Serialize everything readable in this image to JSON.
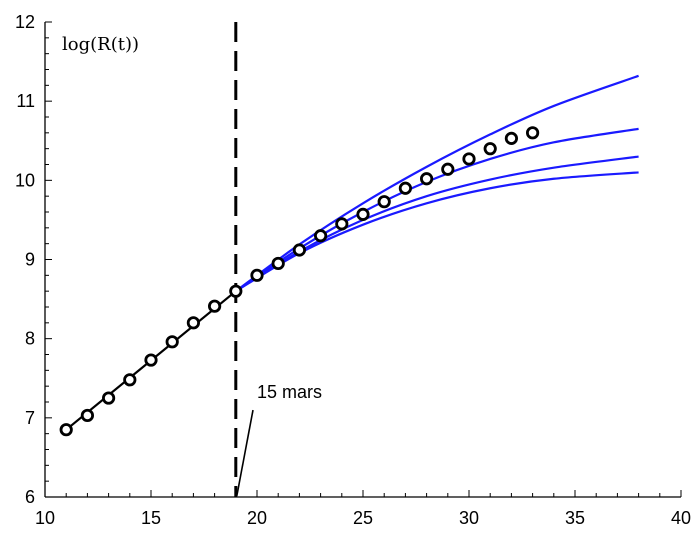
{
  "chart_data": {
    "type": "line",
    "title": "",
    "xlabel": "",
    "ylabel": "log(R(t))",
    "xlim": [
      10,
      40
    ],
    "ylim": [
      6,
      12
    ],
    "xticks": [
      10,
      15,
      20,
      25,
      30,
      35,
      40
    ],
    "yticks": [
      6,
      7,
      8,
      9,
      10,
      11,
      12
    ],
    "grid": false,
    "colors": {
      "observed": "#000000",
      "projection": "#1a1aff",
      "marker_fill": "#ffffff"
    },
    "vline": {
      "x": 19,
      "style": "dashed"
    },
    "annotation": {
      "text": "15 mars",
      "x": 20,
      "y": 7.25,
      "arrow_to": [
        19,
        6
      ]
    },
    "fit_line": {
      "x": [
        11,
        19
      ],
      "y": [
        6.85,
        8.6
      ]
    },
    "observed_points": {
      "x": [
        11,
        12,
        13,
        14,
        15,
        16,
        17,
        18,
        19,
        20,
        21,
        22,
        23,
        24,
        25,
        26,
        27,
        28,
        29,
        30,
        31,
        32,
        33
      ],
      "y": [
        6.85,
        7.03,
        7.25,
        7.48,
        7.73,
        7.96,
        8.2,
        8.41,
        8.6,
        8.8,
        8.95,
        9.12,
        9.3,
        9.45,
        9.57,
        9.73,
        9.9,
        10.02,
        10.14,
        10.27,
        10.4,
        10.53,
        10.6
      ]
    },
    "series": [
      {
        "x": [
          19,
          22,
          25,
          28,
          31,
          34,
          38
        ],
        "y": [
          8.6,
          9.19,
          9.71,
          10.17,
          10.58,
          10.94,
          11.32
        ]
      },
      {
        "x": [
          19,
          22,
          25,
          28,
          31,
          34,
          38
        ],
        "y": [
          8.6,
          9.14,
          9.6,
          9.98,
          10.27,
          10.48,
          10.65
        ]
      },
      {
        "x": [
          19,
          22,
          25,
          28,
          31,
          34,
          38
        ],
        "y": [
          8.6,
          9.1,
          9.5,
          9.8,
          10.01,
          10.16,
          10.3
        ]
      },
      {
        "x": [
          19,
          22,
          25,
          28,
          31,
          34,
          38
        ],
        "y": [
          8.6,
          9.08,
          9.44,
          9.71,
          9.9,
          10.02,
          10.1
        ]
      }
    ]
  }
}
